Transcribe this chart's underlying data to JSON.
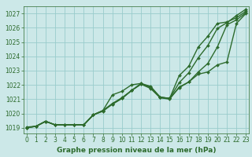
{
  "title": "Graphe pression niveau de la mer (hPa)",
  "bg_color": "#cce8e8",
  "grid_color": "#99cccc",
  "line_color": "#2d6b2d",
  "x_ticks": [
    0,
    1,
    2,
    3,
    4,
    5,
    6,
    7,
    8,
    9,
    10,
    11,
    12,
    13,
    14,
    15,
    16,
    17,
    18,
    19,
    20,
    21,
    22,
    23
  ],
  "y_ticks": [
    1019,
    1020,
    1021,
    1022,
    1023,
    1024,
    1025,
    1026,
    1027
  ],
  "ylim": [
    1018.6,
    1027.5
  ],
  "xlim": [
    -0.3,
    23.3
  ],
  "series": [
    {
      "x": [
        0,
        1,
        2,
        3,
        4,
        5,
        6,
        7,
        8,
        9,
        10,
        11,
        12,
        13,
        14,
        15,
        16,
        17,
        18,
        19,
        20,
        21,
        22,
        23
      ],
      "y": [
        1019.0,
        1019.1,
        1019.45,
        1019.2,
        1019.2,
        1019.2,
        1019.2,
        1019.9,
        1020.15,
        1020.65,
        1021.05,
        1021.6,
        1022.05,
        1021.85,
        1021.1,
        1021.05,
        1022.65,
        1023.3,
        1024.65,
        1025.4,
        1026.3,
        1026.4,
        1026.7,
        1027.15
      ],
      "lw": 1.0,
      "ms": 2.0
    },
    {
      "x": [
        0,
        1,
        2,
        3,
        4,
        5,
        6,
        7,
        8,
        9,
        10,
        11,
        12,
        13,
        14,
        15,
        16,
        17,
        18,
        19,
        20,
        21,
        22,
        23
      ],
      "y": [
        1019.0,
        1019.1,
        1019.45,
        1019.2,
        1019.2,
        1019.2,
        1019.2,
        1019.9,
        1020.2,
        1020.7,
        1021.1,
        1021.6,
        1022.1,
        1021.9,
        1021.15,
        1021.05,
        1022.15,
        1022.85,
        1023.9,
        1024.75,
        1025.95,
        1026.35,
        1026.85,
        1027.3
      ],
      "lw": 1.0,
      "ms": 2.0
    },
    {
      "x": [
        0,
        1,
        2,
        3,
        4,
        5,
        6,
        7,
        8,
        9,
        10,
        11,
        12,
        13,
        14,
        15,
        16,
        17,
        18,
        19,
        20,
        21,
        22,
        23
      ],
      "y": [
        1019.0,
        1019.1,
        1019.45,
        1019.2,
        1019.2,
        1019.2,
        1019.2,
        1019.9,
        1020.2,
        1020.65,
        1021.05,
        1021.6,
        1022.05,
        1021.75,
        1021.1,
        1021.0,
        1021.85,
        1022.2,
        1022.9,
        1023.5,
        1024.65,
        1026.2,
        1026.55,
        1027.05
      ],
      "lw": 1.0,
      "ms": 2.0
    },
    {
      "x": [
        0,
        1,
        2,
        3,
        4,
        5,
        6,
        7,
        8,
        9,
        10,
        11,
        12,
        13,
        14,
        15,
        16,
        17,
        18,
        19,
        20,
        21,
        22,
        23
      ],
      "y": [
        1019.05,
        1019.1,
        1019.45,
        1019.2,
        1019.2,
        1019.2,
        1019.2,
        1019.9,
        1020.2,
        1021.3,
        1021.55,
        1022.0,
        1022.1,
        1021.8,
        1021.15,
        1021.05,
        1021.8,
        1022.2,
        1022.75,
        1022.9,
        1023.4,
        1023.6,
        1026.3,
        1027.0
      ],
      "lw": 1.0,
      "ms": 2.0
    }
  ],
  "bottom_label_color": "#2d6b2d",
  "tick_color": "#2d6b2d",
  "tick_fontsize": 5.5,
  "xlabel_fontsize": 6.5,
  "spine_color": "#2d6b2d"
}
